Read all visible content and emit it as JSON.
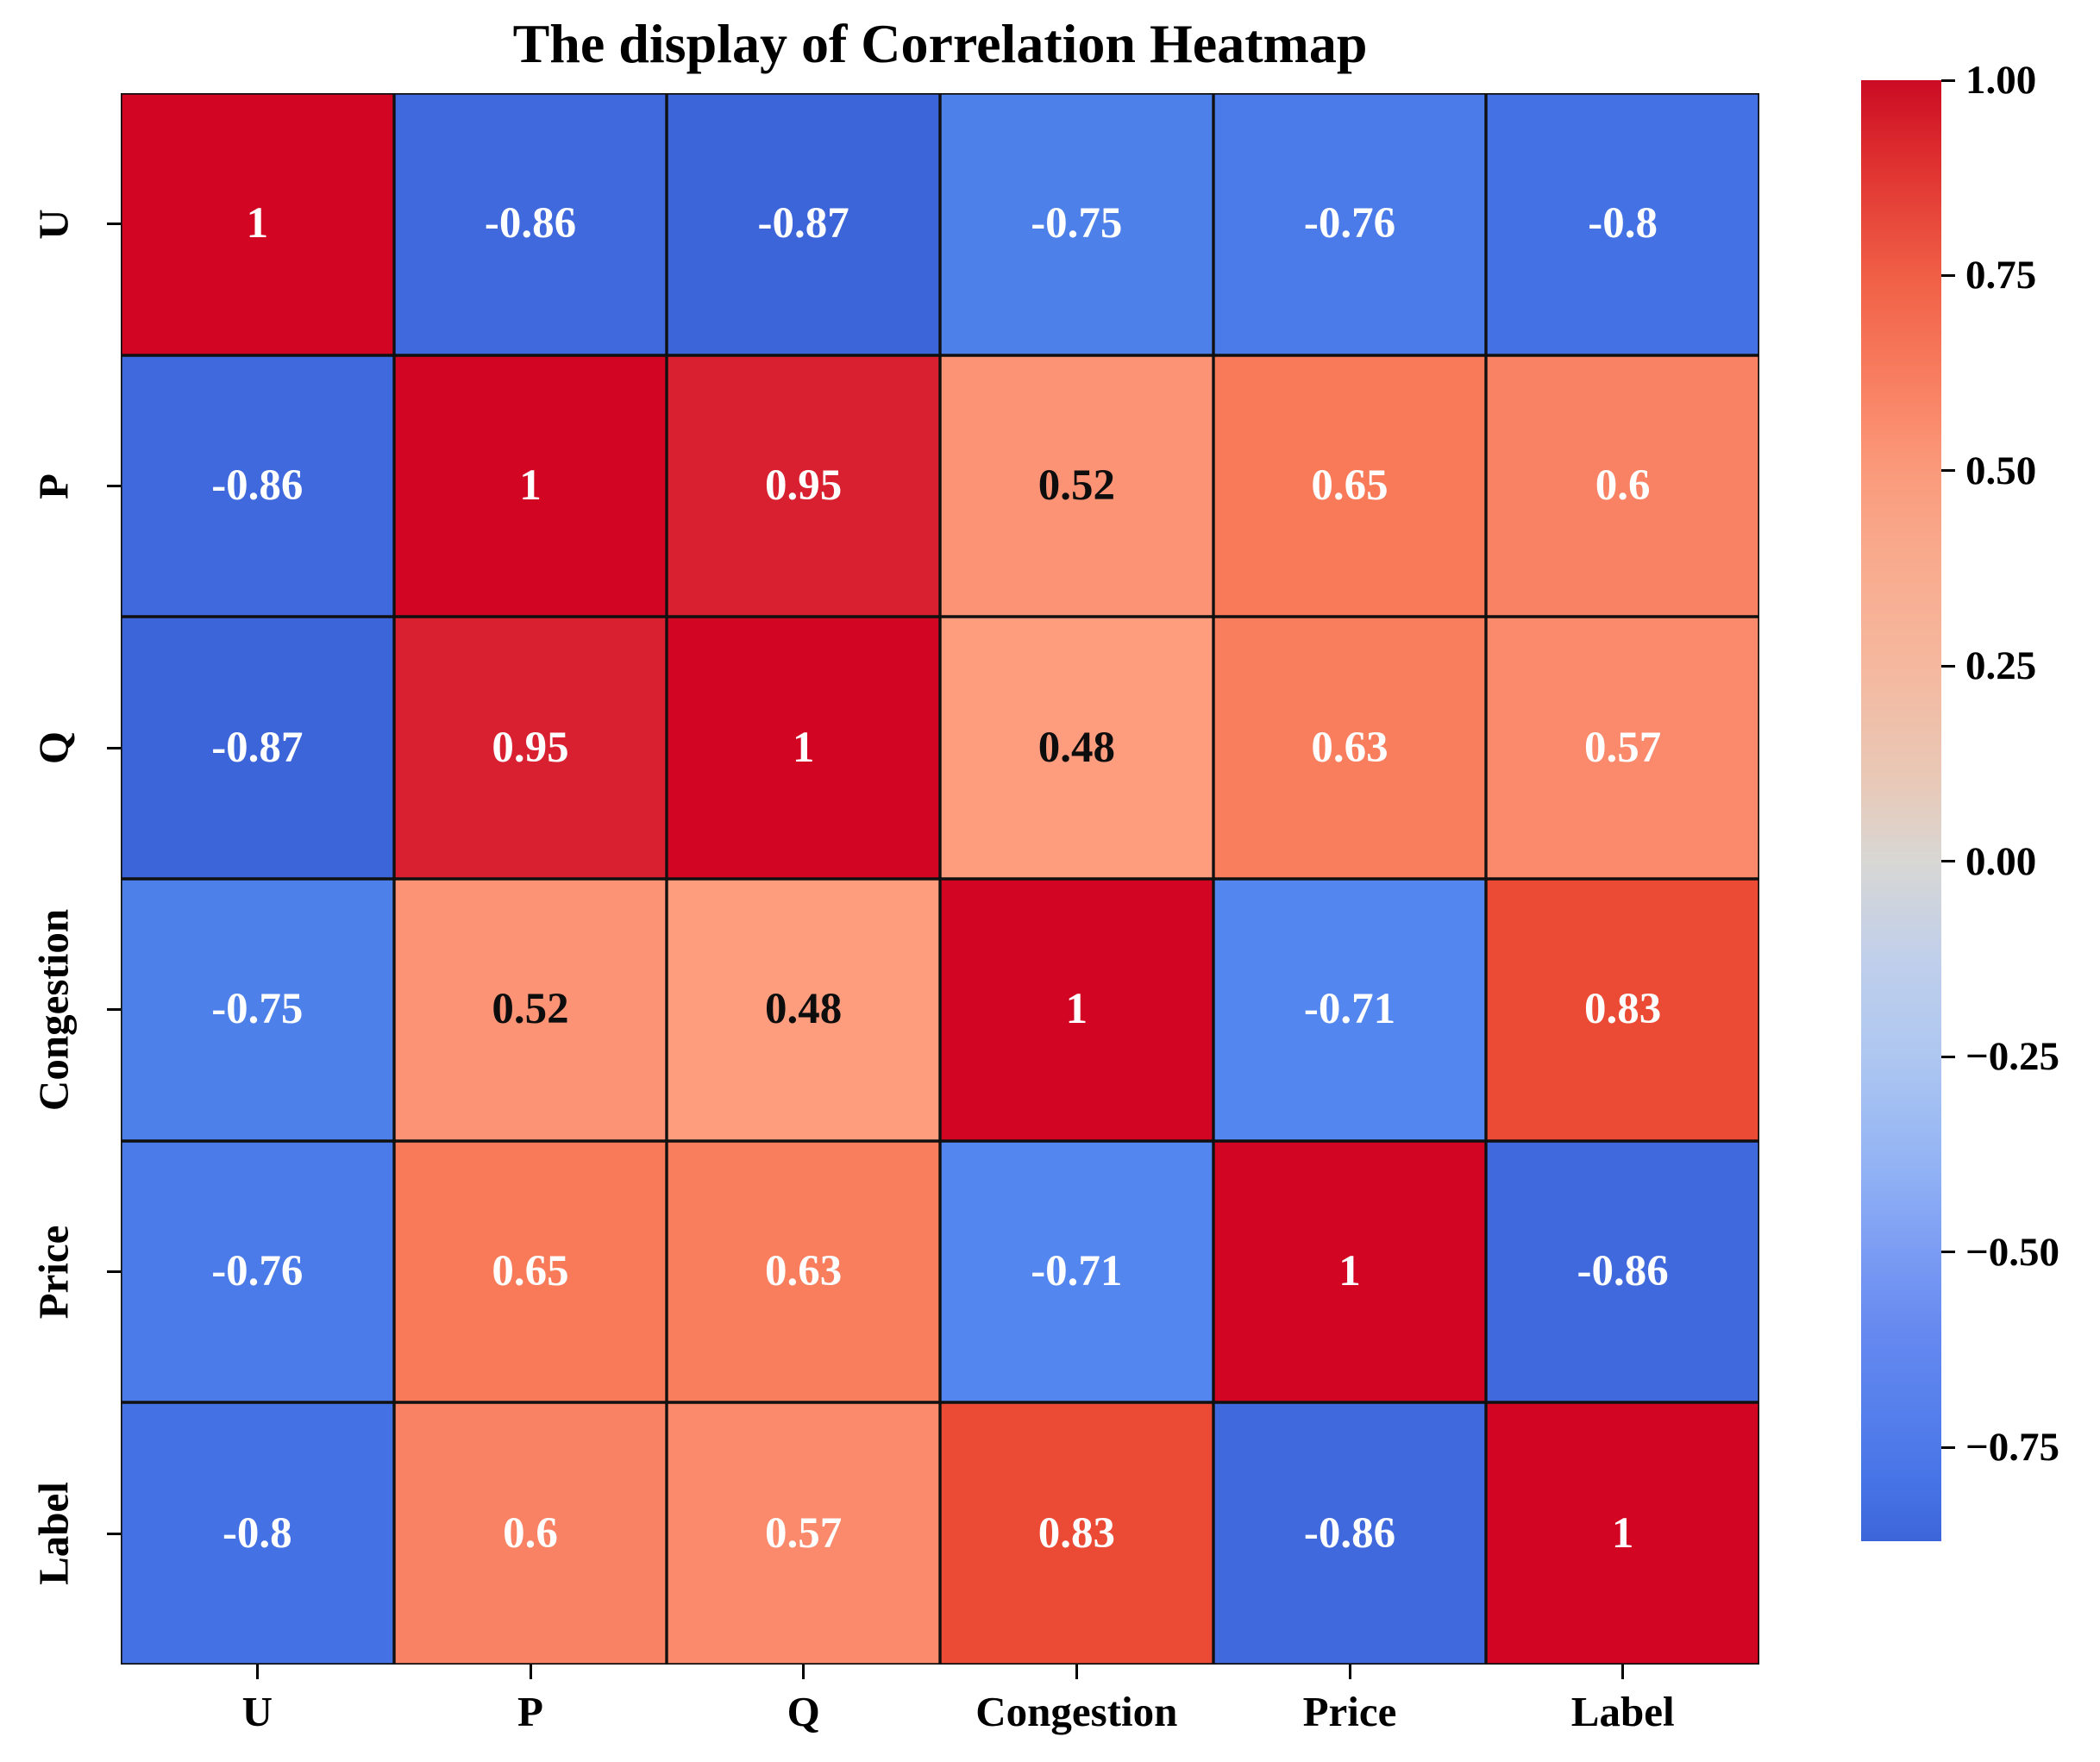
{
  "chart_data": {
    "type": "heatmap",
    "title": "The display of Correlation Heatmap",
    "categories": [
      "U",
      "P",
      "Q",
      "Congestion",
      "Price",
      "Label"
    ],
    "matrix": [
      [
        1,
        -0.86,
        -0.87,
        -0.75,
        -0.76,
        -0.8
      ],
      [
        -0.86,
        1,
        0.95,
        0.52,
        0.65,
        0.6
      ],
      [
        -0.87,
        0.95,
        1,
        0.48,
        0.63,
        0.57
      ],
      [
        -0.75,
        0.52,
        0.48,
        1,
        -0.71,
        0.83
      ],
      [
        -0.76,
        0.65,
        0.63,
        -0.71,
        1,
        -0.86
      ],
      [
        -0.8,
        0.6,
        0.57,
        0.83,
        -0.86,
        1
      ]
    ],
    "colormap": "coolwarm",
    "vmin": -0.87,
    "vmax": 1,
    "legend_position": "right",
    "grid_on": true,
    "cell_border_color": "#101010",
    "colorbar_tick_values": [
      1.0,
      0.75,
      0.5,
      0.25,
      0.0,
      -0.25,
      -0.5,
      -0.75
    ],
    "colorbar_tick_labels": [
      "1.00",
      "0.75",
      "0.50",
      "0.25",
      "0.00",
      "−0.25",
      "−0.50",
      "−0.75"
    ],
    "black_text_values": [
      0.52,
      0.48
    ],
    "annot_light_color": "#ffffff",
    "annot_dark_color": "#0d0d0d",
    "palette": {
      "1": "#d20522",
      "0.95": "#d92030",
      "0.83": "#eb4a34",
      "0.65": "#f87a58",
      "0.63": "#f87e5e",
      "0.6": "#f98264",
      "0.57": "#fa8a6b",
      "0.52": "#fc9375",
      "0.48": "#fe9c7e",
      "-0.71": "#5486ef",
      "-0.75": "#4d80e8",
      "-0.76": "#4b7ae9",
      "-0.8": "#4472e4",
      "-0.86": "#3f69dd",
      "-0.87": "#3d65da"
    },
    "colorbar_gradient": [
      {
        "value": 1.0,
        "color": "#cb0b24"
      },
      {
        "value": 0.9,
        "color": "#de2f2f"
      },
      {
        "value": 0.75,
        "color": "#f05f46"
      },
      {
        "value": 0.6,
        "color": "#f98264"
      },
      {
        "value": 0.5,
        "color": "#fa9a7b"
      },
      {
        "value": 0.4,
        "color": "#f9a98c"
      },
      {
        "value": 0.25,
        "color": "#f5b89e"
      },
      {
        "value": 0.1,
        "color": "#e8c9b8"
      },
      {
        "value": 0.0,
        "color": "#d8d7d4"
      },
      {
        "value": -0.125,
        "color": "#c0cfeb"
      },
      {
        "value": -0.25,
        "color": "#aec7f1"
      },
      {
        "value": -0.4,
        "color": "#90b1f4"
      },
      {
        "value": -0.5,
        "color": "#7b9cf3"
      },
      {
        "value": -0.6,
        "color": "#6689f0"
      },
      {
        "value": -0.7,
        "color": "#5680ec"
      },
      {
        "value": -0.8,
        "color": "#4573e6"
      },
      {
        "value": -0.87,
        "color": "#3d65da"
      }
    ]
  }
}
